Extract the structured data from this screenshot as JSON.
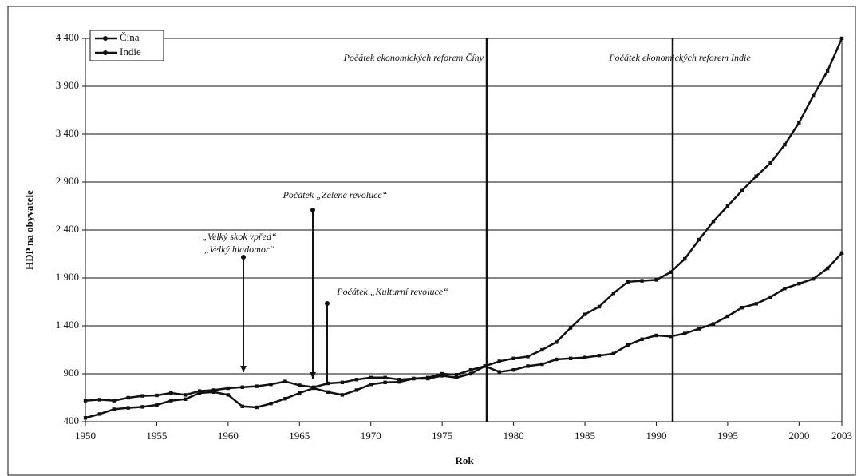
{
  "chart_data": {
    "type": "line",
    "x": [
      1950,
      1951,
      1952,
      1953,
      1954,
      1955,
      1956,
      1957,
      1958,
      1959,
      1960,
      1961,
      1962,
      1963,
      1964,
      1965,
      1966,
      1967,
      1968,
      1969,
      1970,
      1971,
      1972,
      1973,
      1974,
      1975,
      1976,
      1977,
      1978,
      1979,
      1980,
      1981,
      1982,
      1983,
      1984,
      1985,
      1986,
      1987,
      1988,
      1989,
      1990,
      1991,
      1992,
      1993,
      1994,
      1995,
      1996,
      1997,
      1998,
      1999,
      2000,
      2001,
      2002,
      2003
    ],
    "series": [
      {
        "name": "Čína",
        "color": "#111111",
        "values": [
          440,
          480,
          530,
          545,
          555,
          575,
          620,
          635,
          700,
          710,
          680,
          560,
          550,
          590,
          640,
          700,
          750,
          710,
          680,
          730,
          790,
          810,
          815,
          850,
          850,
          880,
          860,
          900,
          980,
          1030,
          1060,
          1080,
          1150,
          1230,
          1380,
          1520,
          1600,
          1740,
          1860,
          1870,
          1880,
          1960,
          2100,
          2300,
          2490,
          2650,
          2810,
          2960,
          3100,
          3290,
          3520,
          3800,
          4060,
          4400
        ]
      },
      {
        "name": "Indie",
        "color": "#111111",
        "values": [
          620,
          630,
          620,
          650,
          670,
          675,
          700,
          680,
          720,
          730,
          750,
          760,
          770,
          790,
          820,
          780,
          760,
          800,
          810,
          840,
          860,
          860,
          840,
          850,
          860,
          900,
          890,
          940,
          980,
          920,
          940,
          980,
          1000,
          1050,
          1060,
          1070,
          1090,
          1110,
          1200,
          1260,
          1300,
          1290,
          1320,
          1370,
          1420,
          1500,
          1590,
          1630,
          1700,
          1790,
          1840,
          1890,
          2000,
          2160
        ]
      }
    ],
    "xlabel": "Rok",
    "ylabel": "HDP na obyvatele",
    "xlim": [
      1950,
      2003
    ],
    "xticks": [
      1950,
      1955,
      1960,
      1965,
      1970,
      1975,
      1980,
      1985,
      1990,
      1995,
      2000,
      2003
    ],
    "ylim": [
      400,
      4400
    ],
    "yticks": [
      400,
      900,
      {
        "value": 1400,
        "label": "1 400"
      },
      {
        "value": 1900,
        "label": "1 900"
      },
      {
        "value": 2400,
        "label": "2 400"
      },
      {
        "value": 2900,
        "label": "2 900"
      },
      {
        "value": 3400,
        "label": "3 400"
      },
      {
        "value": 3900,
        "label": "3 900"
      },
      {
        "value": 4400,
        "label": "4 400"
      }
    ],
    "grid": true,
    "legend": "upper left",
    "annotations": [
      "„Velký skok vpřed“",
      "„Velký hladomor“",
      "Počátek „Zelené revoluce“",
      "Počátek „Kulturní revoluce“",
      "Počátek ekonomických reforem Číny",
      "Počátek ekonomických reforem Indie"
    ]
  }
}
